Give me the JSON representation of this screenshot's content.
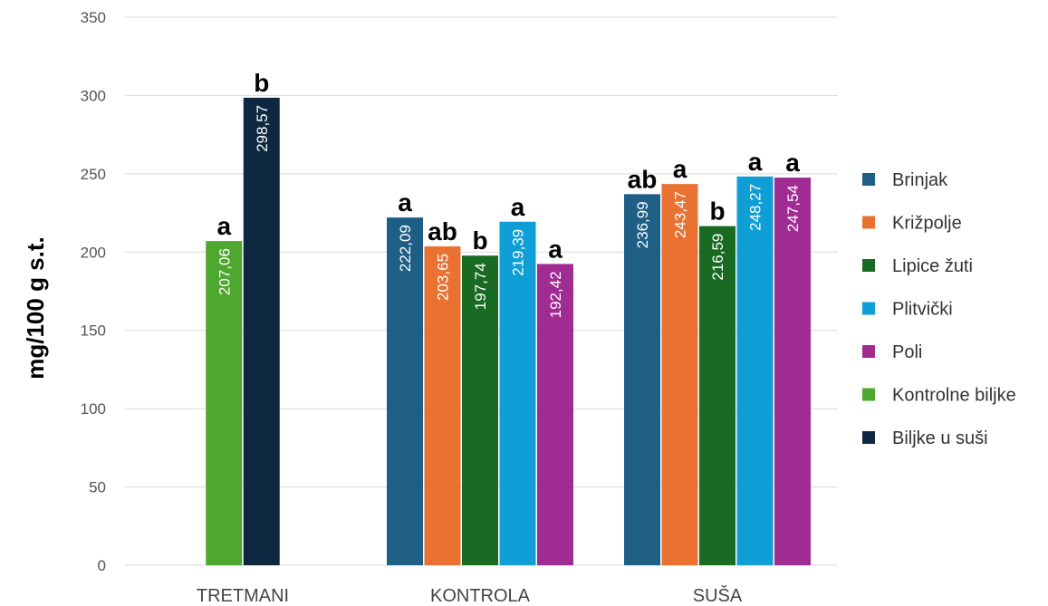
{
  "chart_data": {
    "type": "bar",
    "ylabel": "mg/100 g s.t.",
    "ylim": [
      0,
      350
    ],
    "yticks": [
      0,
      50,
      100,
      150,
      200,
      250,
      300,
      350
    ],
    "grid": true,
    "legend_position": "right",
    "categories": [
      "TRETMANI",
      "KONTROLA",
      "SUŠA"
    ],
    "series": [
      {
        "name": "Brinjak",
        "color": "#1f5f86",
        "values": [
          null,
          222.09,
          236.99
        ],
        "value_labels": [
          null,
          "222,09",
          "236,99"
        ],
        "sig": [
          null,
          "a",
          "ab"
        ]
      },
      {
        "name": "Križpolje",
        "color": "#e97132",
        "values": [
          null,
          203.65,
          243.47
        ],
        "value_labels": [
          null,
          "203,65",
          "243,47"
        ],
        "sig": [
          null,
          "ab",
          "a"
        ]
      },
      {
        "name": "Lipice žuti",
        "color": "#196b24",
        "values": [
          null,
          197.74,
          216.59
        ],
        "value_labels": [
          null,
          "197,74",
          "216,59"
        ],
        "sig": [
          null,
          "b",
          "b"
        ]
      },
      {
        "name": "Plitvički",
        "color": "#0f9ed5",
        "values": [
          null,
          219.39,
          248.27
        ],
        "value_labels": [
          null,
          "219,39",
          "248,27"
        ],
        "sig": [
          null,
          "a",
          "a"
        ]
      },
      {
        "name": "Poli",
        "color": "#a02b93",
        "values": [
          null,
          192.42,
          247.54
        ],
        "value_labels": [
          null,
          "192,42",
          "247,54"
        ],
        "sig": [
          null,
          "a",
          "a"
        ]
      },
      {
        "name": "Kontrolne biljke",
        "color": "#4ea72e",
        "values": [
          207.06,
          null,
          null
        ],
        "value_labels": [
          "207,06",
          null,
          null
        ],
        "sig": [
          "a",
          null,
          null
        ]
      },
      {
        "name": "Biljke u suši",
        "color": "#0e2841",
        "values": [
          298.57,
          null,
          null
        ],
        "value_labels": [
          "298,57",
          null,
          null
        ],
        "sig": [
          "b",
          null,
          null
        ]
      }
    ]
  }
}
